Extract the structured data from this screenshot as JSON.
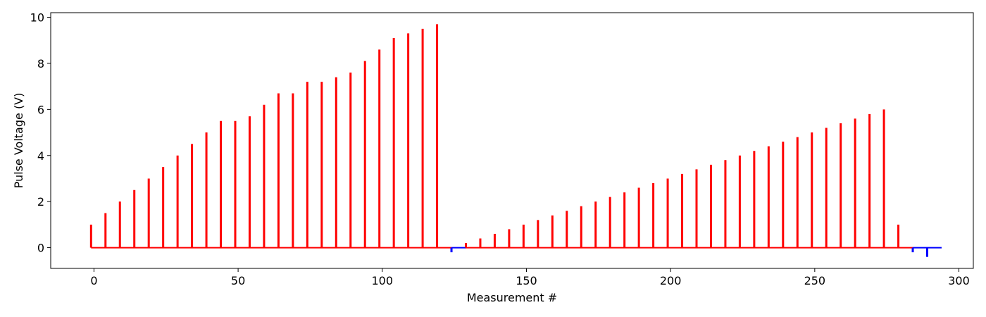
{
  "chart_data": {
    "type": "bar",
    "title": "",
    "xlabel": "Measurement #",
    "ylabel": "Pulse Voltage (V)",
    "xlim": [
      -15,
      305
    ],
    "ylim": [
      -0.9,
      10.2
    ],
    "xticks": [
      0,
      50,
      100,
      150,
      200,
      250,
      300
    ],
    "yticks": [
      0,
      2,
      4,
      6,
      8,
      10
    ],
    "grid": false,
    "baseline": {
      "y": 0,
      "segments": [
        {
          "x_start": -1,
          "x_end": 124,
          "color": "#ff0000"
        },
        {
          "x_start": 124,
          "x_end": 129,
          "color": "#0000ff"
        },
        {
          "x_start": 129,
          "x_end": 284,
          "color": "#ff0000"
        },
        {
          "x_start": 284,
          "x_end": 294,
          "color": "#0000ff"
        }
      ]
    },
    "series": [
      {
        "color": "#ff0000",
        "x": [
          -1,
          4,
          9,
          14,
          19,
          24,
          29,
          34,
          39,
          44,
          49,
          54,
          59,
          64,
          69,
          74,
          79,
          84,
          89,
          94,
          99,
          104,
          109,
          114,
          119,
          129,
          134,
          139,
          144,
          149,
          154,
          159,
          164,
          169,
          174,
          179,
          184,
          189,
          194,
          199,
          204,
          209,
          214,
          219,
          224,
          229,
          234,
          239,
          244,
          249,
          254,
          259,
          264,
          269,
          274,
          279
        ],
        "values": [
          1.0,
          1.5,
          2.0,
          2.5,
          3.0,
          3.5,
          4.0,
          4.5,
          5.0,
          5.5,
          5.5,
          5.7,
          6.2,
          6.7,
          6.7,
          7.2,
          7.2,
          7.4,
          7.6,
          8.1,
          8.6,
          9.1,
          9.3,
          9.5,
          9.7,
          0.2,
          0.4,
          0.6,
          0.8,
          1.0,
          1.2,
          1.4,
          1.6,
          1.8,
          2.0,
          2.2,
          2.4,
          2.6,
          2.8,
          3.0,
          3.2,
          3.4,
          3.6,
          3.8,
          4.0,
          4.2,
          4.4,
          4.6,
          4.8,
          5.0,
          5.2,
          5.4,
          5.6,
          5.8,
          6.0,
          1.0
        ]
      },
      {
        "color": "#0000ff",
        "x": [
          124,
          284,
          289
        ],
        "values": [
          -0.2,
          -0.2,
          -0.4
        ]
      }
    ]
  }
}
